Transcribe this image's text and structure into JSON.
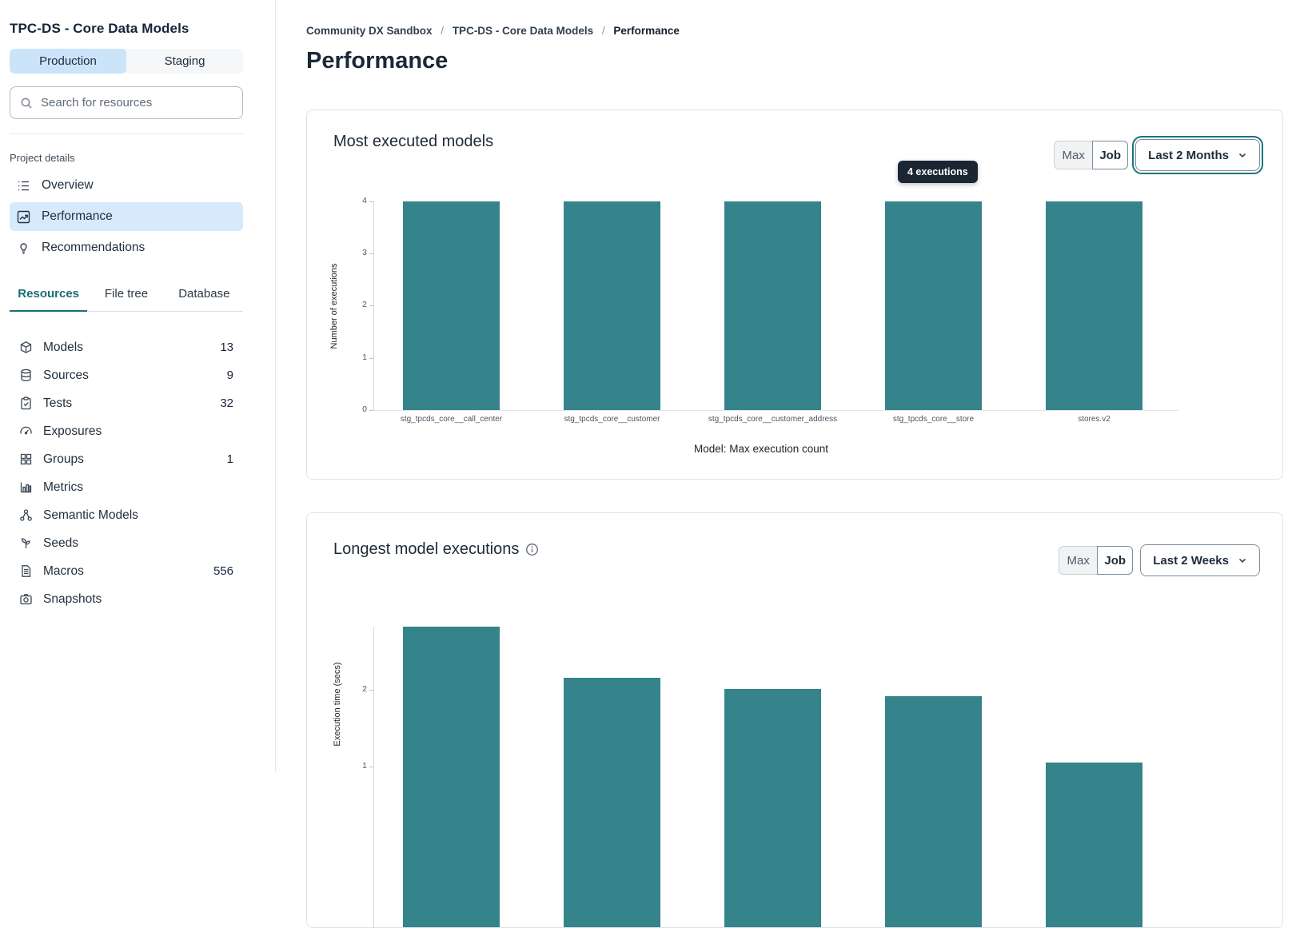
{
  "sidebar": {
    "title": "TPC-DS - Core Data Models",
    "env_tabs": {
      "production": "Production",
      "staging": "Staging"
    },
    "search_placeholder": "Search for resources",
    "project_details_label": "Project details",
    "nav": [
      {
        "label": "Overview"
      },
      {
        "label": "Performance"
      },
      {
        "label": "Recommendations"
      }
    ],
    "resource_tabs": [
      {
        "label": "Resources"
      },
      {
        "label": "File tree"
      },
      {
        "label": "Database"
      }
    ],
    "resources": [
      {
        "label": "Models",
        "count": "13"
      },
      {
        "label": "Sources",
        "count": "9"
      },
      {
        "label": "Tests",
        "count": "32"
      },
      {
        "label": "Exposures",
        "count": ""
      },
      {
        "label": "Groups",
        "count": "1"
      },
      {
        "label": "Metrics",
        "count": ""
      },
      {
        "label": "Semantic Models",
        "count": ""
      },
      {
        "label": "Seeds",
        "count": ""
      },
      {
        "label": "Macros",
        "count": "556"
      },
      {
        "label": "Snapshots",
        "count": ""
      }
    ]
  },
  "breadcrumb": [
    "Community DX Sandbox",
    "TPC-DS - Core Data Models",
    "Performance"
  ],
  "page_title": "Performance",
  "colors": {
    "accent_teal": "#186e76",
    "bar_teal": "#35838b",
    "active_blue": "#cbe4f9",
    "tooltip_bg": "#1b2634"
  },
  "chart_data": [
    {
      "type": "bar",
      "title": "Most executed models",
      "categories": [
        "stg_tpcds_core__call_center",
        "stg_tpcds_core__customer",
        "stg_tpcds_core__customer_address",
        "stg_tpcds_core__store",
        "stores.v2"
      ],
      "values": [
        4,
        4,
        4,
        4,
        4
      ],
      "xlabel": "Model: Max execution count",
      "ylabel": "Number of executions",
      "ylim": [
        0,
        4
      ],
      "yticks": [
        0,
        1,
        2,
        3,
        4
      ],
      "bar_color": "#35838b",
      "legend": "none",
      "grid": "off",
      "tooltip": {
        "text": "4 executions",
        "bar_index": 3
      },
      "controls": {
        "toggle": [
          "Max",
          "Job"
        ],
        "dropdown": "Last 2 Months"
      }
    },
    {
      "type": "bar",
      "title": "Longest model executions",
      "values": [
        2.83,
        2.16,
        2.01,
        1.92,
        1.05
      ],
      "ylabel": "Execution time (secs)",
      "ylim": [
        0,
        2.83
      ],
      "yticks": [
        1,
        2
      ],
      "bar_color": "#35838b",
      "legend": "none",
      "grid": "off",
      "controls": {
        "toggle": [
          "Max",
          "Job"
        ],
        "dropdown": "Last 2 Weeks"
      }
    }
  ]
}
